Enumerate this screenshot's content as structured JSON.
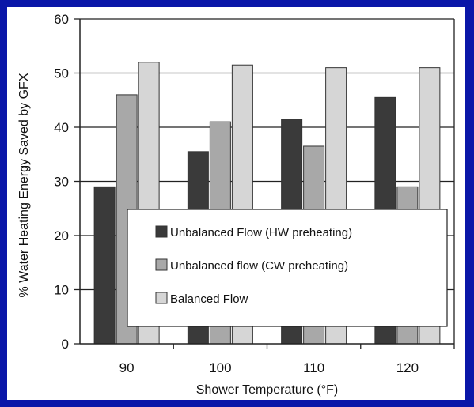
{
  "chart_data": {
    "type": "bar",
    "title": "",
    "xlabel": "Shower Temperature (°F)",
    "ylabel": "% Water Heating Energy Saved by GFX",
    "categories": [
      "90",
      "100",
      "110",
      "120"
    ],
    "ylim": [
      0,
      60
    ],
    "yticks": [
      "0",
      "10",
      "20",
      "30",
      "40",
      "50",
      "60"
    ],
    "grid": true,
    "legend_position": "lower-middle",
    "series": [
      {
        "name": "Unbalanced Flow (HW preheating)",
        "values": [
          29,
          35.5,
          41.5,
          45.5
        ],
        "color": "#3a3a3a"
      },
      {
        "name": "Unbalanced flow (CW preheating)",
        "values": [
          46,
          41,
          36.5,
          29
        ],
        "color": "#a8a8a8"
      },
      {
        "name": "Balanced Flow",
        "values": [
          52,
          51.5,
          51,
          51
        ],
        "color": "#d6d6d6"
      }
    ]
  }
}
